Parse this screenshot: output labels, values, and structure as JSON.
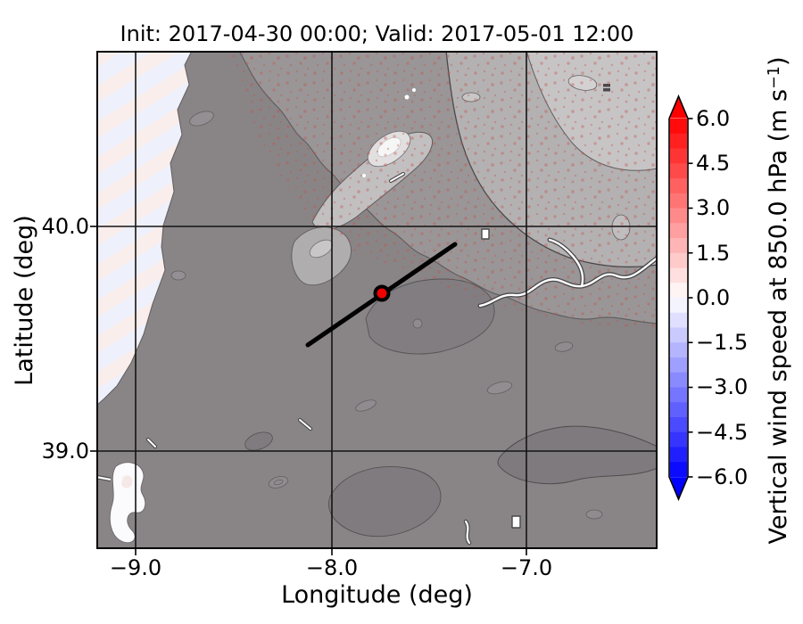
{
  "figure": {
    "title": "Init: 2017-04-30 00:00; Valid: 2017-05-01 12:00"
  },
  "axes": {
    "xlabel": "Longitude (deg)",
    "ylabel": "Latitude (deg)",
    "xticks": [
      "−9.0",
      "−8.0",
      "−7.0"
    ],
    "yticks": [
      "40.0",
      "39.0"
    ]
  },
  "colorbar": {
    "label_pre": "Vertical wind speed at 850.0 hPa (m s",
    "label_sup": "−1",
    "label_post": ")",
    "ticks": [
      "6.0",
      "4.5",
      "3.0",
      "1.5",
      "0.0",
      "−1.5",
      "−3.0",
      "−4.5",
      "−6.0"
    ],
    "over_color": "#ff0000",
    "under_color": "#0000ff",
    "band_colors": [
      "#ff0b0b",
      "#ff2020",
      "#ff3535",
      "#ff4a4a",
      "#ff6060",
      "#ff7575",
      "#ff8a8a",
      "#ff9f9f",
      "#ffb5b5",
      "#ffcaca",
      "#ffdfdf",
      "#fff4f4",
      "#f4f4ff",
      "#dfdfff",
      "#cacaff",
      "#b5b5ff",
      "#9f9fff",
      "#8a8aff",
      "#7575ff",
      "#6060ff",
      "#4a4aff",
      "#3535ff",
      "#2020ff",
      "#0b0bff"
    ]
  },
  "map": {
    "marker_color": "#f20000",
    "transect_color": "#000000",
    "grid_color": "#141414",
    "ocean_base_color": "#eef0fb",
    "ocean_band_color": "#fbeee8",
    "land_gray_levels": [
      "#898587",
      "#9a9698",
      "#b4b1b3",
      "#c7c4c6",
      "#e2dfe1",
      "#f7f6f6"
    ]
  },
  "chart_data": {
    "type": "heatmap",
    "title": "Init: 2017-04-30 00:00; Valid: 2017-05-01 12:00",
    "xlabel": "Longitude (deg)",
    "ylabel": "Latitude (deg)",
    "xlim": [
      -9.25,
      -6.3
    ],
    "ylim": [
      38.53,
      40.78
    ],
    "xticks": [
      -9.0,
      -8.0,
      -7.0
    ],
    "yticks": [
      40.0,
      39.0
    ],
    "grid": true,
    "colorbar": {
      "label": "Vertical wind speed at 850.0 hPa (m s^-1)",
      "ticks": [
        6.0,
        4.5,
        3.0,
        1.5,
        0.0,
        -1.5,
        -3.0,
        -4.5,
        -6.0
      ],
      "range": [
        -6.0,
        6.0
      ],
      "band_step": 0.5,
      "colormap": "bwr",
      "extend": "both"
    },
    "field_description": "Vertical wind speed near 0 m/s over most of the domain; faint positive (pale pink) SW-NE bands over the Atlantic strip in the west and weak positive speckles over the northeastern mountains",
    "basemap_description": "Grayscale terrain of central Portugal with elevation contours; white rivers/reservoirs and Tagus estuary; bright white Serra da Estrela peak",
    "marker": {
      "lon": -7.74,
      "lat": 39.7,
      "color": "#f20000"
    },
    "transect": {
      "lon": [
        -8.12,
        -7.37
      ],
      "lat": [
        39.47,
        39.92
      ],
      "color": "#000000"
    }
  }
}
